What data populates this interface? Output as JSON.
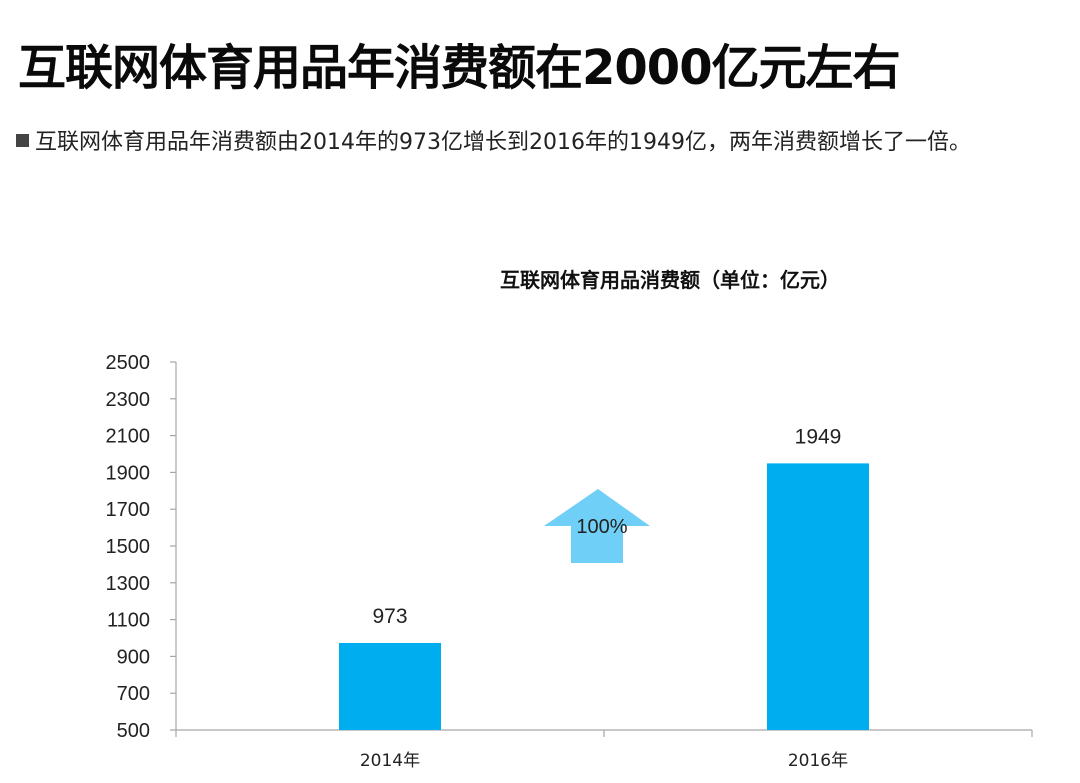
{
  "header": {
    "title": "互联网体育用品年消费额在2000亿元左右",
    "subtitle": "互联网体育用品年消费额由2014年的973亿增长到2016年的1949亿，两年消费额增长了一倍。"
  },
  "chart_data": {
    "type": "bar",
    "title": "互联网体育用品消费额（单位：亿元）",
    "categories": [
      "2014年",
      "2016年"
    ],
    "values": [
      973,
      1949
    ],
    "value_labels": [
      "973",
      "1949"
    ],
    "ylim": [
      500,
      2500
    ],
    "yticks": [
      500,
      700,
      900,
      1100,
      1300,
      1500,
      1700,
      1900,
      2100,
      2300,
      2500
    ],
    "bar_color": "#00AEEF",
    "grid": false,
    "annotation": {
      "label": "100%",
      "icon": "up-arrow-icon",
      "color": "#6FCFF6"
    }
  }
}
